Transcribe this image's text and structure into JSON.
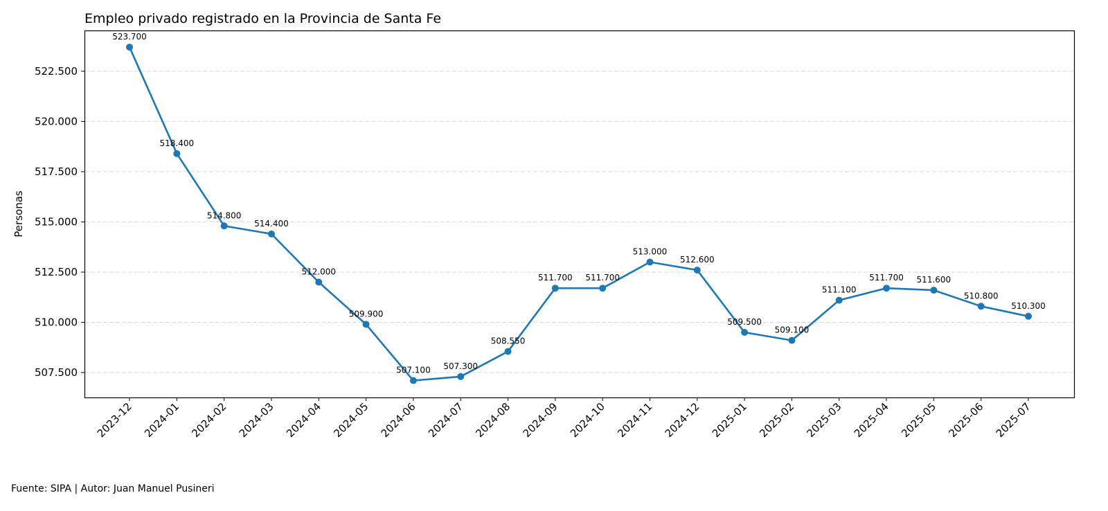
{
  "chart_data": {
    "type": "line",
    "title": "Empleo privado registrado en la Provincia de Santa Fe",
    "xlabel": "",
    "ylabel": "Personas",
    "categories": [
      "2023-12",
      "2024-01",
      "2024-02",
      "2024-03",
      "2024-04",
      "2024-05",
      "2024-06",
      "2024-07",
      "2024-08",
      "2024-09",
      "2024-10",
      "2024-11",
      "2024-12",
      "2025-01",
      "2025-02",
      "2025-03",
      "2025-04",
      "2025-05",
      "2025-06",
      "2025-07"
    ],
    "series": [
      {
        "name": "Empleo privado registrado",
        "color": "#1f77b4",
        "values": [
          523700,
          518400,
          514800,
          514400,
          512000,
          509900,
          507100,
          507300,
          508550,
          511700,
          511700,
          513000,
          512600,
          509500,
          509100,
          511100,
          511700,
          511600,
          510800,
          510300
        ],
        "data_labels": [
          "523.700",
          "518.400",
          "514.800",
          "514.400",
          "512.000",
          "509.900",
          "507.100",
          "507.300",
          "508.550",
          "511.700",
          "511.700",
          "513.000",
          "512.600",
          "509.500",
          "509.100",
          "511.100",
          "511.700",
          "511.600",
          "510.800",
          "510.300"
        ]
      }
    ],
    "ylim": [
      506260,
      524530
    ],
    "yticks": [
      507500,
      510000,
      512500,
      515000,
      517500,
      520000,
      522500
    ],
    "ytick_labels": [
      "507.500",
      "510.000",
      "512.500",
      "515.000",
      "517.500",
      "520.000",
      "522.500"
    ],
    "grid": "horizontal-dashed",
    "legend": "none"
  },
  "footer": {
    "text": "Fuente: SIPA | Autor: Juan Manuel Pusineri"
  }
}
